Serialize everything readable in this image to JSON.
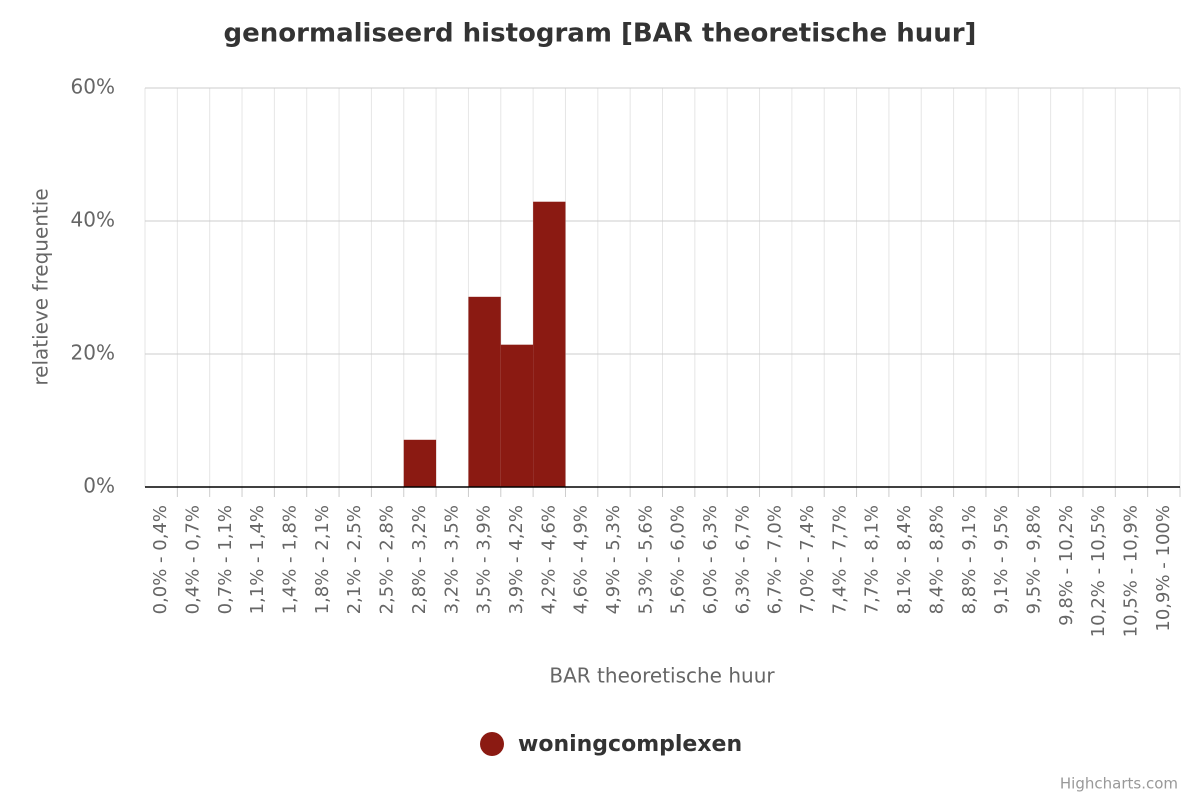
{
  "chart_data": {
    "type": "bar",
    "title": "genormaliseerd histogram [BAR theoretische huur]",
    "x_label": "BAR theoretische huur",
    "y_label": "relatieve frequentie",
    "categories": [
      "0,0% - 0,4%",
      "0,4% - 0,7%",
      "0,7% - 1,1%",
      "1,1% - 1,4%",
      "1,4% - 1,8%",
      "1,8% - 2,1%",
      "2,1% - 2,5%",
      "2,5% - 2,8%",
      "2,8% - 3,2%",
      "3,2% - 3,5%",
      "3,5% - 3,9%",
      "3,9% - 4,2%",
      "4,2% - 4,6%",
      "4,6% - 4,9%",
      "4,9% - 5,3%",
      "5,3% - 5,6%",
      "5,6% - 6,0%",
      "6,0% - 6,3%",
      "6,3% - 6,7%",
      "6,7% - 7,0%",
      "7,0% - 7,4%",
      "7,4% - 7,7%",
      "7,7% - 8,1%",
      "8,1% - 8,4%",
      "8,4% - 8,8%",
      "8,8% - 9,1%",
      "9,1% - 9,5%",
      "9,5% - 9,8%",
      "9,8% - 10,2%",
      "10,2% - 10,5%",
      "10,5% - 10,9%",
      "10,9% - 100%"
    ],
    "series": [
      {
        "name": "woningcomplexen",
        "color": "#8b1a12",
        "values": [
          0,
          0,
          0,
          0,
          0,
          0,
          0,
          0,
          7.1,
          0,
          28.6,
          21.4,
          42.9,
          0,
          0,
          0,
          0,
          0,
          0,
          0,
          0,
          0,
          0,
          0,
          0,
          0,
          0,
          0,
          0,
          0,
          0,
          0
        ]
      }
    ],
    "ylim": [
      0,
      60
    ],
    "yticks": [
      {
        "value": 0,
        "label": "0%"
      },
      {
        "value": 20,
        "label": "20%"
      },
      {
        "value": 40,
        "label": "40%"
      },
      {
        "value": 60,
        "label": "60%"
      }
    ],
    "grid": true,
    "legend": "bottom",
    "credits": "Highcharts.com"
  }
}
